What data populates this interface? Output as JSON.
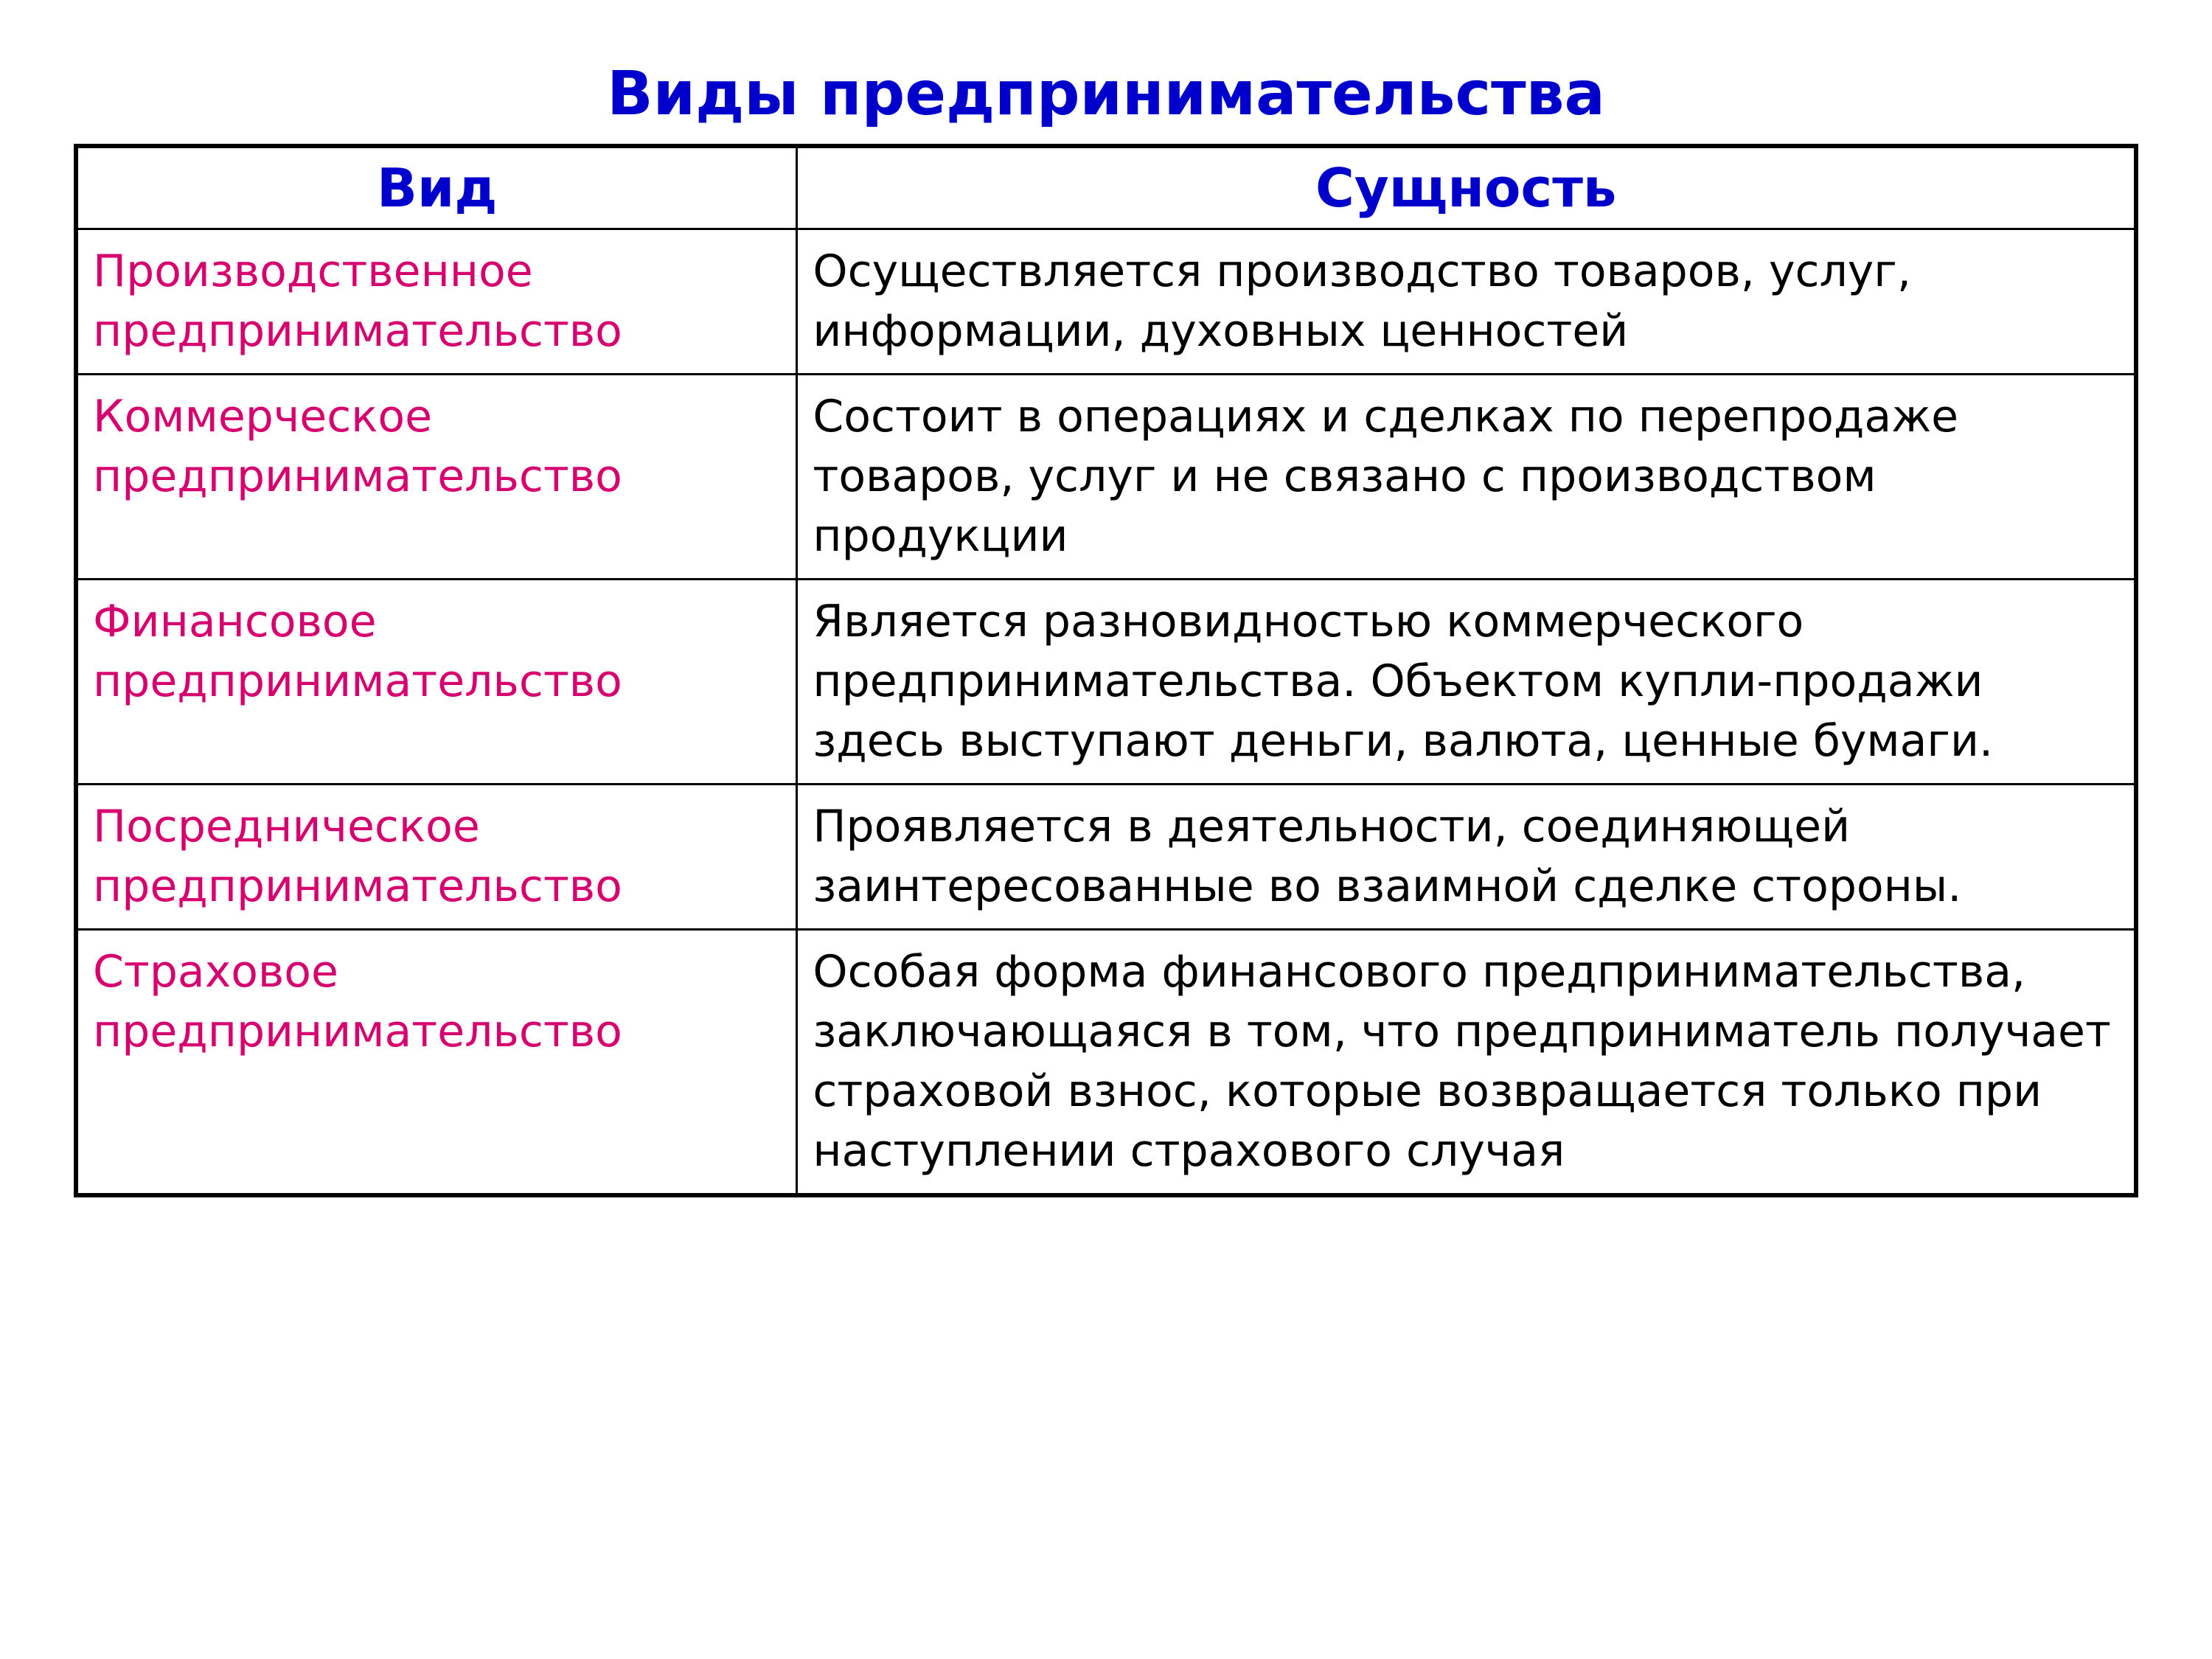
{
  "title": "Виды предпринимательства",
  "table": {
    "columns": [
      "Вид",
      "Сущность"
    ],
    "rows": [
      {
        "type": "Производственное предпринимательство",
        "essence": "Осуществляется производство товаров, услуг, информации, духовных ценностей"
      },
      {
        "type": "Коммерческое предпринимательство",
        "essence": "Состоит в операциях и сделках по перепродаже товаров, услуг и не связано с производством продукции"
      },
      {
        "type": "Финансовое предпринимательство",
        "essence": "Является разновидностью коммерческого предпринимательства. Объектом купли-продажи здесь выступают деньги, валюта, ценные бумаги."
      },
      {
        "type": "Посредническое предпринимательство",
        "essence": "Проявляется в деятельности, соединяющей заинтересованные во взаимной сделке стороны."
      },
      {
        "type": "Страховое предпринимательство",
        "essence": "Особая форма финансового предпринимательства, заключающаяся в том, что предприниматель получает страховой взнос, которые возвращается только при наступлении страхового случая"
      }
    ],
    "styles": {
      "title_color": "#0000cc",
      "title_fontsize": 82,
      "header_color": "#0000cc",
      "header_fontsize": 72,
      "type_color": "#d6006f",
      "essence_color": "#000000",
      "body_fontsize": 60,
      "border_color": "#000000",
      "outer_border_width": 6,
      "inner_border_width": 3,
      "background_color": "#ffffff",
      "col1_width_pct": 35,
      "col2_width_pct": 65
    }
  }
}
